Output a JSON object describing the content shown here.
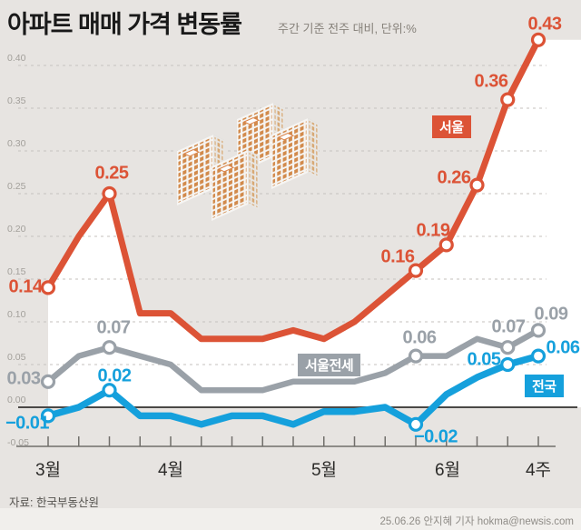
{
  "header": {
    "title": "아파트 매매 가격 변동률",
    "subtitle": "주간 기준 전주 대비, 단위:%"
  },
  "footer": {
    "source": "자료: 한국부동산원",
    "credit": "25.06.26 안지혜 기자 hokma@newsis.com"
  },
  "colors": {
    "background": "#e7e4e1",
    "plot_fill_under_seoul_line": "#ffffff",
    "seoul": "#dc5336",
    "seoul_jeonse": "#9aa1a8",
    "national": "#15a0dc",
    "zero_axis": "#4a4846",
    "grid": "#c5c2be",
    "tick_label": "#a3a09b",
    "month_label": "#2b2a28",
    "building_window": "#d28a4b",
    "footer_band": "#f1efec"
  },
  "chart_data": {
    "type": "line",
    "title": "아파트 매매 가격 변동률",
    "note": "주간 기준 전주 대비, 단위:%",
    "unit": "%",
    "legend_position": "on-chart-tags",
    "y_axis": {
      "ticks": [
        "0.40",
        "0.35",
        "0.30",
        "0.25",
        "0.20",
        "0.15",
        "0.10",
        "0.05",
        "0.00",
        "-0.05"
      ],
      "tick_values": [
        0.4,
        0.35,
        0.3,
        0.25,
        0.2,
        0.15,
        0.1,
        0.05,
        0.0,
        -0.05
      ],
      "range": [
        -0.05,
        0.45
      ],
      "grid": "dashed"
    },
    "x_axis": {
      "tick_count": 17,
      "month_labels": [
        {
          "index": 0,
          "label": "3월"
        },
        {
          "index": 4,
          "label": "4월"
        },
        {
          "index": 9,
          "label": "5월"
        },
        {
          "index": 13,
          "label": "6월"
        },
        {
          "index": 16,
          "label": "4주"
        }
      ]
    },
    "series": [
      {
        "name": "서울",
        "color": "#dc5336",
        "values": [
          0.14,
          0.2,
          0.25,
          0.11,
          0.11,
          0.08,
          0.08,
          0.08,
          0.09,
          0.08,
          0.1,
          0.13,
          0.16,
          0.19,
          0.26,
          0.36,
          0.43
        ],
        "labeled_points": [
          {
            "index": 0,
            "label": "0.14"
          },
          {
            "index": 2,
            "label": "0.25"
          },
          {
            "index": 12,
            "label": "0.16"
          },
          {
            "index": 13,
            "label": "0.19"
          },
          {
            "index": 14,
            "label": "0.26"
          },
          {
            "index": 15,
            "label": "0.36"
          },
          {
            "index": 16,
            "label": "0.43"
          }
        ]
      },
      {
        "name": "서울전세",
        "color": "#9aa1a8",
        "values": [
          0.03,
          0.06,
          0.07,
          0.06,
          0.05,
          0.02,
          0.02,
          0.02,
          0.03,
          0.03,
          0.03,
          0.04,
          0.06,
          0.06,
          0.08,
          0.07,
          0.09
        ],
        "labeled_points": [
          {
            "index": 0,
            "label": "0.03"
          },
          {
            "index": 2,
            "label": "0.07"
          },
          {
            "index": 12,
            "label": "0.06"
          },
          {
            "index": 15,
            "label": "0.07"
          },
          {
            "index": 16,
            "label": "0.09"
          }
        ]
      },
      {
        "name": "전국",
        "color": "#15a0dc",
        "values": [
          -0.01,
          0.0,
          0.02,
          -0.01,
          -0.01,
          -0.02,
          -0.01,
          -0.01,
          -0.02,
          -0.005,
          -0.005,
          0.0,
          -0.02,
          0.015,
          0.035,
          0.05,
          0.06
        ],
        "labeled_points": [
          {
            "index": 0,
            "label": "−0.01"
          },
          {
            "index": 2,
            "label": "0.02"
          },
          {
            "index": 12,
            "label": "−0.02"
          },
          {
            "index": 15,
            "label": "0.05"
          },
          {
            "index": 16,
            "label": "0.06"
          }
        ]
      }
    ]
  }
}
